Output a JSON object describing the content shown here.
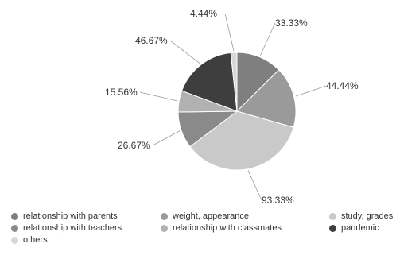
{
  "chart_data": {
    "type": "pie",
    "categories": [
      "relationship with parents",
      "weight, appearance",
      "study, grades",
      "relationship with teachers",
      "relationship with classmates",
      "pandemic",
      "others"
    ],
    "values": [
      33.33,
      44.44,
      93.33,
      26.67,
      15.56,
      46.67,
      4.44
    ],
    "labels": [
      "33.33%",
      "44.44%",
      "93.33%",
      "26.67%",
      "15.56%",
      "46.67%",
      "4.44%"
    ],
    "colors": [
      "#7f7f7f",
      "#9a9a9a",
      "#c9c9c9",
      "#8a8a8a",
      "#b1b1b1",
      "#3e3e3e",
      "#d8d8d8"
    ],
    "legend_position": "bottom",
    "start_angle_deg": 0,
    "direction": "clockwise"
  }
}
